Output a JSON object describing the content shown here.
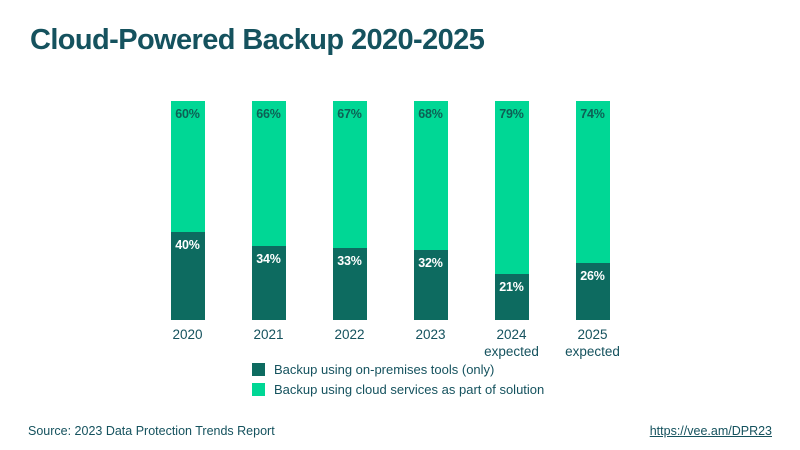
{
  "title": "Cloud-Powered Backup 2020-2025",
  "chart_data": {
    "type": "bar",
    "stacked": true,
    "orientation": "vertical",
    "categories": [
      "2020",
      "2021",
      "2022",
      "2023",
      "2024\nexpected",
      "2025\nexpected"
    ],
    "series": [
      {
        "name": "Backup using on-premises tools (only)",
        "color": "#0d6b60",
        "values": [
          40,
          34,
          33,
          32,
          21,
          26
        ],
        "unit": "%"
      },
      {
        "name": "Backup using cloud services as part of solution",
        "color": "#00d795",
        "values": [
          60,
          66,
          67,
          68,
          79,
          74
        ],
        "unit": "%"
      }
    ],
    "ylim": [
      0,
      100
    ],
    "grid": false,
    "legend_position": "bottom",
    "value_labels": "inside-top-of-segment"
  },
  "legend": {
    "items": [
      {
        "label": "Backup using on-premises tools (only)",
        "color": "#0d6b60"
      },
      {
        "label": "Backup using cloud services as part of solution",
        "color": "#00d795"
      }
    ]
  },
  "footer": {
    "source": "Source: 2023 Data Protection Trends Report",
    "link": "https://vee.am/DPR23"
  },
  "colors": {
    "background": "#ffffff",
    "title_text": "#15525e",
    "on_premises": "#0d6b60",
    "cloud": "#00d795",
    "label_on_green": "#0d6055",
    "label_on_dark": "#ffffff"
  }
}
